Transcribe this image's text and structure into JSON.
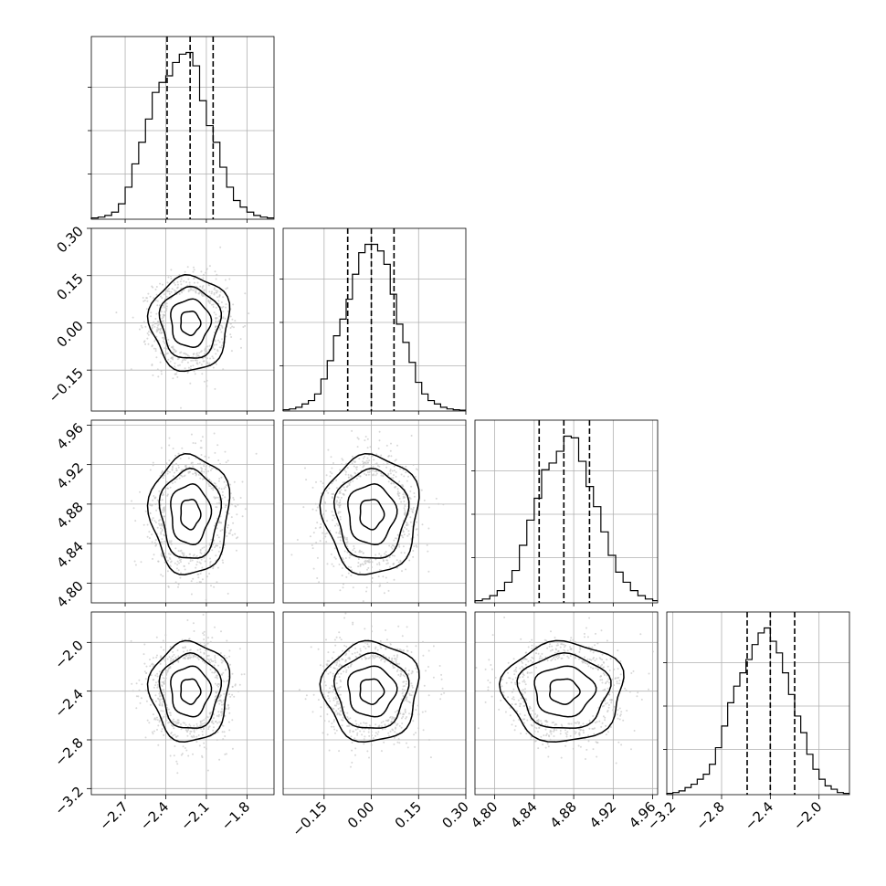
{
  "chart_data": {
    "type": "corner",
    "grid": true,
    "title": "",
    "parameters": [
      {
        "xlim": [
          -2.95,
          -1.6
        ],
        "ticks": [
          -2.7,
          -2.4,
          -2.1,
          -1.8
        ],
        "tick_labels": [
          "−2.7",
          "−2.4",
          "−2.1",
          "−1.8"
        ],
        "mean": -2.22,
        "std": 0.135,
        "quantiles": [
          -2.39,
          -2.22,
          -2.05
        ]
      },
      {
        "xlim": [
          -0.28,
          0.3
        ],
        "ticks": [
          -0.15,
          0.0,
          0.15,
          0.3
        ],
        "tick_labels": [
          "−0.15",
          "0.00",
          "0.15",
          "0.30"
        ],
        "mean": 0.0,
        "std": 0.07,
        "quantiles": [
          -0.075,
          0.0,
          0.072
        ]
      },
      {
        "xlim": [
          4.78,
          4.965
        ],
        "ticks": [
          4.8,
          4.84,
          4.88,
          4.92,
          4.96
        ],
        "tick_labels": [
          "4.80",
          "4.84",
          "4.88",
          "4.92",
          "4.96"
        ],
        "mean": 4.87,
        "std": 0.028,
        "quantiles": [
          4.845,
          4.87,
          4.896
        ]
      },
      {
        "xlim": [
          -3.25,
          -1.75
        ],
        "ticks": [
          -3.2,
          -2.8,
          -2.4,
          -2.0
        ],
        "tick_labels": [
          "−3.2",
          "−2.8",
          "−2.4",
          "−2.0"
        ],
        "mean": -2.4,
        "std": 0.19,
        "quantiles": [
          -2.59,
          -2.4,
          -2.2
        ]
      }
    ],
    "histograms": [
      {
        "param": 0,
        "bin_edges": [
          -2.95,
          -2.9,
          -2.85,
          -2.8,
          -2.75,
          -2.7,
          -2.65,
          -2.6,
          -2.55,
          -2.5,
          -2.45,
          -2.4,
          -2.35,
          -2.3,
          -2.25,
          -2.2,
          -2.15,
          -2.1,
          -2.05,
          -2.0,
          -1.95,
          -1.9,
          -1.85,
          -1.8,
          -1.75,
          -1.7,
          -1.65,
          -1.6
        ],
        "counts": [
          0.005,
          0.01,
          0.02,
          0.04,
          0.09,
          0.19,
          0.33,
          0.46,
          0.6,
          0.76,
          0.82,
          0.86,
          0.94,
          0.99,
          1.0,
          0.92,
          0.71,
          0.56,
          0.46,
          0.31,
          0.19,
          0.11,
          0.07,
          0.04,
          0.02,
          0.01,
          0.005
        ]
      },
      {
        "param": 1,
        "bin_edges": [
          -0.28,
          -0.26,
          -0.24,
          -0.22,
          -0.2,
          -0.18,
          -0.16,
          -0.14,
          -0.12,
          -0.1,
          -0.08,
          -0.06,
          -0.04,
          -0.02,
          0.0,
          0.02,
          0.04,
          0.06,
          0.08,
          0.1,
          0.12,
          0.14,
          0.16,
          0.18,
          0.2,
          0.22,
          0.24,
          0.26,
          0.28,
          0.3
        ],
        "counts": [
          0.005,
          0.01,
          0.02,
          0.04,
          0.06,
          0.1,
          0.19,
          0.3,
          0.45,
          0.55,
          0.67,
          0.82,
          0.95,
          1.0,
          1.0,
          0.96,
          0.88,
          0.7,
          0.52,
          0.41,
          0.29,
          0.17,
          0.1,
          0.06,
          0.04,
          0.02,
          0.01,
          0.005,
          0.002
        ]
      },
      {
        "param": 2,
        "bin_edges": [
          4.78,
          4.7875,
          4.795,
          4.8025,
          4.81,
          4.8175,
          4.825,
          4.8325,
          4.84,
          4.8475,
          4.855,
          4.8625,
          4.87,
          4.8775,
          4.885,
          4.8925,
          4.9,
          4.9075,
          4.915,
          4.9225,
          4.93,
          4.9375,
          4.945,
          4.9525,
          4.96,
          4.965
        ],
        "counts": [
          0.01,
          0.02,
          0.04,
          0.07,
          0.12,
          0.19,
          0.34,
          0.49,
          0.62,
          0.79,
          0.83,
          0.9,
          0.99,
          0.98,
          0.84,
          0.69,
          0.57,
          0.42,
          0.28,
          0.18,
          0.12,
          0.07,
          0.04,
          0.02,
          0.01
        ]
      },
      {
        "param": 3,
        "bin_edges": [
          -3.25,
          -3.2,
          -3.15,
          -3.1,
          -3.05,
          -3.0,
          -2.95,
          -2.9,
          -2.85,
          -2.8,
          -2.75,
          -2.7,
          -2.65,
          -2.6,
          -2.55,
          -2.5,
          -2.45,
          -2.4,
          -2.35,
          -2.3,
          -2.25,
          -2.2,
          -2.15,
          -2.1,
          -2.05,
          -2.0,
          -1.95,
          -1.9,
          -1.85,
          -1.8,
          -1.75
        ],
        "counts": [
          0.005,
          0.01,
          0.02,
          0.04,
          0.06,
          0.09,
          0.12,
          0.18,
          0.28,
          0.41,
          0.55,
          0.65,
          0.73,
          0.81,
          0.9,
          0.97,
          1.0,
          0.92,
          0.85,
          0.73,
          0.6,
          0.47,
          0.37,
          0.24,
          0.15,
          0.09,
          0.05,
          0.03,
          0.01,
          0.005
        ]
      }
    ],
    "scatter_panels": [
      {
        "x_param": 0,
        "y_param": 1,
        "correlation": 0.0
      },
      {
        "x_param": 0,
        "y_param": 2,
        "correlation": 0.0
      },
      {
        "x_param": 1,
        "y_param": 2,
        "correlation": 0.0
      },
      {
        "x_param": 0,
        "y_param": 3,
        "correlation": 0.0
      },
      {
        "x_param": 1,
        "y_param": 3,
        "correlation": 0.0
      },
      {
        "x_param": 2,
        "y_param": 3,
        "correlation": 0.0
      }
    ],
    "contour_levels_sigma": [
      0.5,
      1.0,
      1.5,
      2.0
    ]
  }
}
